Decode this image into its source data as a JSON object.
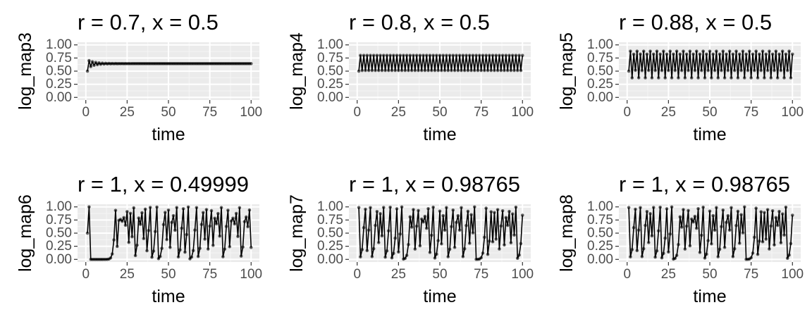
{
  "colors": {
    "panel_background": "#ebebeb",
    "grid_major": "#ffffff",
    "grid_minor": "#f5f5f5",
    "series_line": "#000000",
    "series_point": "#000000",
    "tick_text": "#4d4d4d",
    "tick_mark": "#333333",
    "text": "#000000"
  },
  "chart_data": [
    {
      "type": "line",
      "title": "r = 0.7, x = 0.5",
      "xlabel": "time",
      "ylabel": "log_map3",
      "xlim": [
        0,
        100
      ],
      "ylim": [
        0,
        1
      ],
      "x_ticks": [
        "0",
        "25",
        "50",
        "75",
        "100"
      ],
      "y_ticks": [
        "0.00",
        "0.25",
        "0.50",
        "0.75",
        "1.00"
      ],
      "grid": true,
      "points": true,
      "series": [
        {
          "generator": "logistic_map",
          "r": 0.7,
          "x0": 0.5,
          "t_start": 1,
          "t_end": 100,
          "approx_range": [
            0.5,
            0.7
          ],
          "behavior": "converges to about 0.64 after a few steps"
        }
      ]
    },
    {
      "type": "line",
      "title": "r = 0.8, x = 0.5",
      "xlabel": "time",
      "ylabel": "log_map4",
      "xlim": [
        0,
        100
      ],
      "ylim": [
        0,
        1
      ],
      "x_ticks": [
        "0",
        "25",
        "50",
        "75",
        "100"
      ],
      "y_ticks": [
        "0.00",
        "0.25",
        "0.50",
        "0.75",
        "1.00"
      ],
      "grid": true,
      "points": true,
      "series": [
        {
          "generator": "logistic_map",
          "r": 0.8,
          "x0": 0.5,
          "t_start": 1,
          "t_end": 100,
          "approx_range": [
            0.51,
            0.8
          ],
          "behavior": "period-2 oscillation between about 0.51 and 0.80"
        }
      ]
    },
    {
      "type": "line",
      "title": "r = 0.88, x = 0.5",
      "xlabel": "time",
      "ylabel": "log_map5",
      "xlim": [
        0,
        100
      ],
      "ylim": [
        0,
        1
      ],
      "x_ticks": [
        "0",
        "25",
        "50",
        "75",
        "100"
      ],
      "y_ticks": [
        "0.00",
        "0.25",
        "0.50",
        "0.75",
        "1.00"
      ],
      "grid": true,
      "points": true,
      "series": [
        {
          "generator": "logistic_map",
          "r": 0.88,
          "x0": 0.5,
          "t_start": 1,
          "t_end": 100,
          "approx_range": [
            0.38,
            0.88
          ],
          "behavior": "period-4 oscillation between about 0.38 and 0.88"
        }
      ]
    },
    {
      "type": "line",
      "title": "r = 1, x = 0.49999",
      "xlabel": "time",
      "ylabel": "log_map6",
      "xlim": [
        0,
        100
      ],
      "ylim": [
        0,
        1
      ],
      "x_ticks": [
        "0",
        "25",
        "50",
        "75",
        "100"
      ],
      "y_ticks": [
        "0.00",
        "0.25",
        "0.50",
        "0.75",
        "1.00"
      ],
      "grid": true,
      "points": true,
      "series": [
        {
          "generator": "logistic_map",
          "r": 1,
          "x0": 0.49999,
          "t_start": 1,
          "t_end": 100,
          "approx_range": [
            0,
            1
          ],
          "behavior": "jumps to 1, drops to about 0, stays near 0 until about t = 27, then chaotic"
        }
      ]
    },
    {
      "type": "line",
      "title": "r = 1, x = 0.98765",
      "xlabel": "time",
      "ylabel": "log_map7",
      "xlim": [
        0,
        100
      ],
      "ylim": [
        0,
        1
      ],
      "x_ticks": [
        "0",
        "25",
        "50",
        "75",
        "100"
      ],
      "y_ticks": [
        "0.00",
        "0.25",
        "0.50",
        "0.75",
        "1.00"
      ],
      "grid": true,
      "points": true,
      "series": [
        {
          "generator": "logistic_map",
          "r": 1,
          "x0": 0.98765,
          "t_start": 1,
          "t_end": 100,
          "approx_range": [
            0,
            1
          ],
          "behavior": "chaotic, values spread over 0 to 1"
        }
      ]
    },
    {
      "type": "line",
      "title": "r = 1, x = 0.98765",
      "xlabel": "time",
      "ylabel": "log_map8",
      "xlim": [
        0,
        100
      ],
      "ylim": [
        0,
        1
      ],
      "x_ticks": [
        "0",
        "25",
        "50",
        "75",
        "100"
      ],
      "y_ticks": [
        "0.00",
        "0.25",
        "0.50",
        "0.75",
        "1.00"
      ],
      "grid": true,
      "points": true,
      "series": [
        {
          "generator": "logistic_map",
          "r": 1,
          "x0": 0.98765,
          "t_start": 1,
          "t_end": 100,
          "approx_range": [
            0,
            1
          ],
          "behavior": "chaotic, values spread over 0 to 1"
        }
      ]
    }
  ]
}
